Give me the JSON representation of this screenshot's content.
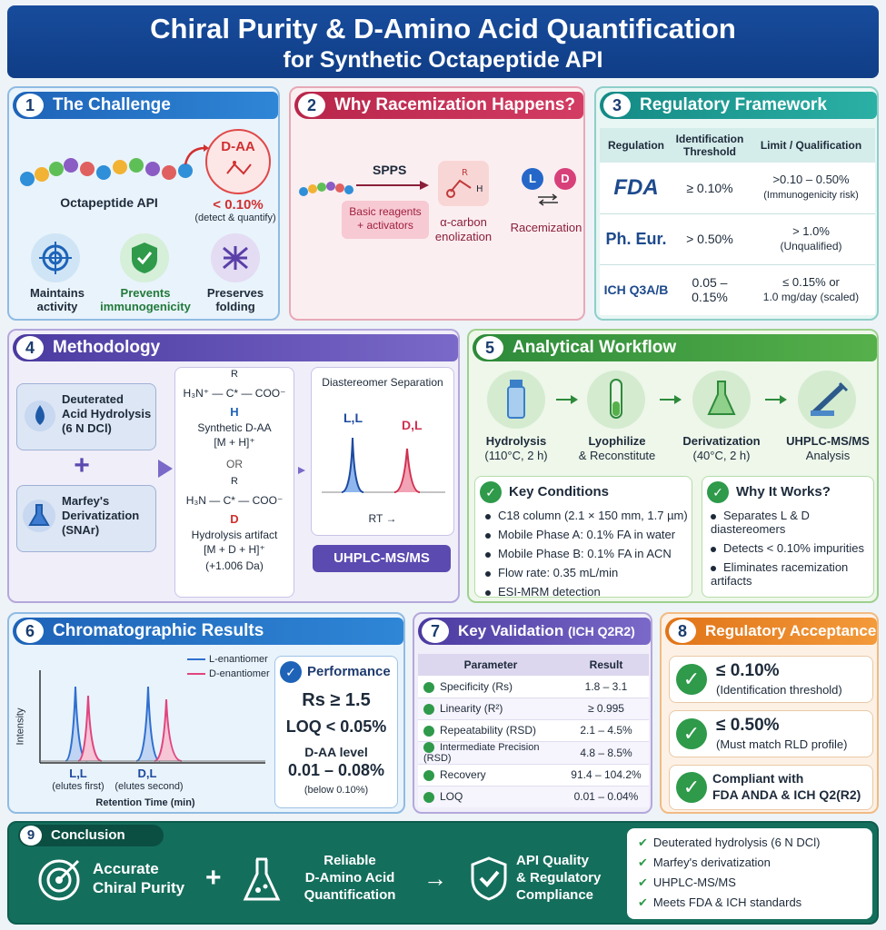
{
  "header": {
    "line1": "Chiral Purity & D-Amino Acid Quantification",
    "line2": "for Synthetic Octapeptide API"
  },
  "p1": {
    "num": "1",
    "title": "The Challenge",
    "daa": "D-AA",
    "api": "Octapeptide API",
    "limit": "< 0.10%",
    "limit_sub": "(detect & quantify)",
    "items": [
      {
        "label1": "Maintains",
        "label2": "activity"
      },
      {
        "label1": "Prevents",
        "label2": "immunogenicity"
      },
      {
        "label1": "Preserves",
        "label2": "folding"
      }
    ]
  },
  "p2": {
    "num": "2",
    "title": "Why Racemization Happens?",
    "spps": "SPPS",
    "reagents1": "Basic reagents",
    "reagents2": "+ activators",
    "enol1": "α-carbon",
    "enol2": "enolization",
    "racem": "Racemization",
    "L": "L",
    "D": "D"
  },
  "p3": {
    "num": "3",
    "title": "Regulatory Framework",
    "headers": [
      "Regulation",
      "Identification Threshold",
      "Limit / Qualification"
    ],
    "rows": [
      {
        "reg": "FDA",
        "thr": "≥ 0.10%",
        "lim1": ">0.10 – 0.50%",
        "lim2": "(Immunogenicity risk)"
      },
      {
        "reg": "Ph. Eur.",
        "thr": "> 0.50%",
        "lim1": "> 1.0%",
        "lim2": "(Unqualified)"
      },
      {
        "reg": "ICH Q3A/B",
        "thr": "0.05 – 0.15%",
        "lim1": "≤ 0.15% or",
        "lim2": "1.0 mg/day (scaled)"
      }
    ]
  },
  "p4": {
    "num": "4",
    "title": "Methodology",
    "hyd1": "Deuterated",
    "hyd2": "Acid Hydrolysis",
    "hyd3": "(6 N DCl)",
    "plus": "+",
    "mar1": "Marfey's",
    "mar2": "Derivatization",
    "mar3": "(SNAr)",
    "s1_r": "R",
    "s1_main": "H₃N⁺ — C* — COO⁻",
    "s1_h": "H",
    "s1_name": "Synthetic D-AA",
    "s1_mass": "[M + H]⁺",
    "or": "OR",
    "s2_r": "R",
    "s2_main": "H₃N — C* — COO⁻",
    "s2_d": "D",
    "s2_name": "Hydrolysis artifact",
    "s2_mass": "[M + D + H]⁺",
    "s2_delta": "(+1.006 Da)",
    "sep_title": "Diastereomer Separation",
    "ll": "L,L",
    "dl": "D,L",
    "rt": "RT →",
    "uhplc": "UHPLC-MS/MS"
  },
  "p5": {
    "num": "5",
    "title": "Analytical Workflow",
    "steps": [
      {
        "l1": "Hydrolysis",
        "l2": "(110°C, 2 h)"
      },
      {
        "l1": "Lyophilize",
        "l2": "& Reconstitute"
      },
      {
        "l1": "Derivatization",
        "l2": "(40°C, 2 h)"
      },
      {
        "l1": "UHPLC-MS/MS",
        "l2": "Analysis"
      }
    ],
    "kc_title": "Key Conditions",
    "kc": [
      "C18 column (2.1 × 150 mm, 1.7 µm)",
      "Mobile Phase A: 0.1% FA in water",
      "Mobile Phase B: 0.1% FA in ACN",
      "Flow rate: 0.35 mL/min",
      "ESI-MRM detection"
    ],
    "why_title": "Why It Works?",
    "why": [
      "Separates L & D diastereomers",
      "Detects < 0.10% impurities",
      "Eliminates racemization artifacts"
    ]
  },
  "p6": {
    "num": "6",
    "title": "Chromatographic Results",
    "leg_l": "L-enantiomer",
    "leg_d": "D-enantiomer",
    "ylabel": "Intensity",
    "xlabel": "Retention Time (min)",
    "g1": "L,L",
    "g1s": "(elutes first)",
    "g2": "D,L",
    "g2s": "(elutes second)",
    "perf_title": "Performance",
    "rs": "Rs ≥ 1.5",
    "loq": "LOQ < 0.05%",
    "daa": "D-AA level",
    "range": "0.01 – 0.08%",
    "below": "(below 0.10%)",
    "colors": {
      "l": "#2f6fd0",
      "d": "#e0457f"
    }
  },
  "p7": {
    "num": "7",
    "title": "Key Validation",
    "title_sub": "(ICH Q2R2)",
    "headers": [
      "Parameter",
      "Result"
    ],
    "rows": [
      {
        "p": "Specificity (Rs)",
        "r": "1.8 – 3.1"
      },
      {
        "p": "Linearity (R²)",
        "r": "≥ 0.995"
      },
      {
        "p": "Repeatability (RSD)",
        "r": "2.1 – 4.5%"
      },
      {
        "p": "Intermediate Precision (RSD)",
        "r": "4.8 – 8.5%"
      },
      {
        "p": "Recovery",
        "r": "91.4 – 104.2%"
      },
      {
        "p": "LOQ",
        "r": "0.01 – 0.04%"
      }
    ]
  },
  "p8": {
    "num": "8",
    "title": "Regulatory Acceptance",
    "c1a": "≤ 0.10%",
    "c1b": "(Identification threshold)",
    "c2a": "≤ 0.50%",
    "c2b": "(Must match RLD profile)",
    "c3a": "Compliant with",
    "c3b": "FDA ANDA & ICH Q2(R2)"
  },
  "p9": {
    "num": "9",
    "title": "Conclusion",
    "a1": "Accurate",
    "a2": "Chiral Purity",
    "plus": "+",
    "b1": "Reliable",
    "b2": "D-Amino Acid",
    "b3": "Quantification",
    "arrow": "→",
    "c1": "API Quality",
    "c2": "& Regulatory",
    "c3": "Compliance",
    "list": [
      "Deuterated hydrolysis (6 N DCl)",
      "Marfey's derivatization",
      "UHPLC-MS/MS",
      "Meets FDA & ICH standards"
    ]
  }
}
